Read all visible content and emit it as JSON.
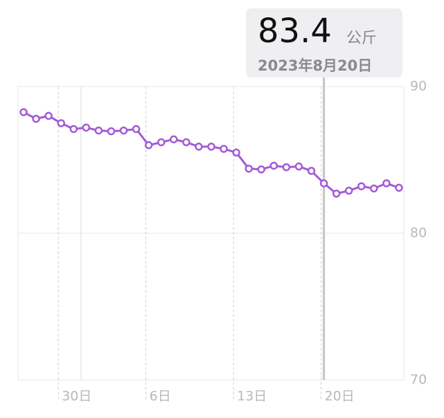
{
  "chart_data": {
    "type": "line",
    "categories": [
      null,
      null,
      null,
      "30日",
      null,
      null,
      null,
      null,
      null,
      null,
      "6日",
      null,
      null,
      null,
      null,
      null,
      null,
      "13日",
      null,
      null,
      null,
      null,
      null,
      null,
      "20日",
      null,
      null,
      null,
      null,
      null,
      null
    ],
    "series": [
      {
        "color": "#a35ad8",
        "values": [
          88.25,
          87.8,
          88.0,
          87.5,
          87.1,
          87.2,
          87.0,
          86.95,
          87.0,
          87.1,
          86.0,
          86.2,
          86.4,
          86.2,
          85.9,
          85.9,
          85.75,
          85.5,
          84.4,
          84.35,
          84.6,
          84.5,
          84.55,
          84.25,
          83.4,
          82.7,
          82.9,
          83.2,
          83.05,
          83.4,
          83.1
        ]
      }
    ],
    "ylim": [
      70,
      90
    ],
    "yticks": [
      70,
      80,
      90
    ],
    "grid": true,
    "selected": {
      "index": 24,
      "unit": "公斤",
      "date": "2023年8月20日"
    }
  }
}
